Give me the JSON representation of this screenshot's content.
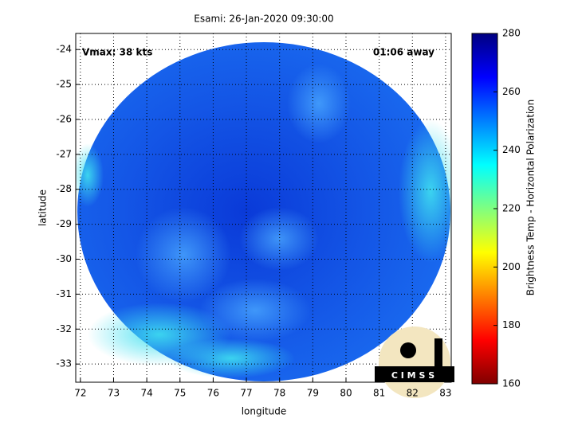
{
  "chart_data": {
    "type": "image",
    "title": "Esami: 26-Jan-2020 09:30:00",
    "annotations": [
      "Vmax: 38 kts",
      "01:06 away"
    ],
    "x_label": "longitude",
    "y_label": "latitude",
    "xlim": [
      71.86,
      83.17
    ],
    "ylim": [
      -33.52,
      -23.54
    ],
    "xticks": [
      72,
      73,
      74,
      75,
      76,
      77,
      78,
      79,
      80,
      81,
      82,
      83
    ],
    "yticks": [
      -33,
      -32,
      -31,
      -30,
      -29,
      -28,
      -27,
      -26,
      -25,
      -24
    ],
    "grid": true,
    "colorbar": {
      "label": "Brightness Temp - Horizontal Polarization",
      "lim": [
        160,
        280
      ],
      "ticks": [
        160,
        180,
        200,
        220,
        240,
        260,
        280
      ],
      "colormap": "jet"
    }
  },
  "logo": {
    "text": "C I M S S"
  }
}
